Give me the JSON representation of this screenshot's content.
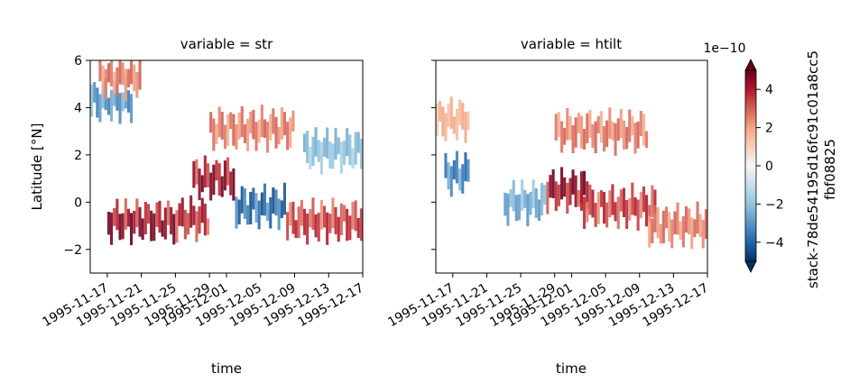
{
  "chart_data": {
    "type": "heatmap",
    "panels": [
      {
        "title": "variable = str",
        "xlabel": "time",
        "ylabel": "Latitude [°N]",
        "xtick_labels": [
          "1995-11-17",
          "1995-11-21",
          "1995-11-25",
          "1995-11-29",
          "1995-12-01",
          "1995-12-05",
          "1995-12-09",
          "1995-12-13",
          "1995-12-17"
        ],
        "ytick_labels": [
          "−2",
          "0",
          "2",
          "4",
          "6"
        ],
        "yticks": [
          -2,
          0,
          2,
          4,
          6
        ],
        "ylim": [
          -3,
          6
        ],
        "xlim": [
          "1995-11-15",
          "1995-12-17"
        ],
        "features": [
          {
            "lat": 4.3,
            "from": "1995-11-15",
            "to": "1995-11-20",
            "value": -3.5
          },
          {
            "lat": 5.3,
            "from": "1995-11-16",
            "to": "1995-11-21",
            "value": 3.0
          },
          {
            "lat": -0.8,
            "from": "1995-11-17",
            "to": "1995-11-25",
            "value": 5.0
          },
          {
            "lat": -0.7,
            "from": "1995-11-25",
            "to": "1995-11-29",
            "value": 4.5
          },
          {
            "lat": 1.0,
            "from": "1995-11-27",
            "to": "1995-12-02",
            "value": 5.0
          },
          {
            "lat": 3.1,
            "from": "1995-11-29",
            "to": "1995-12-09",
            "value": 3.0
          },
          {
            "lat": -0.2,
            "from": "1995-12-02",
            "to": "1995-12-08",
            "value": -4.5
          },
          {
            "lat": -0.8,
            "from": "1995-12-08",
            "to": "1995-12-17",
            "value": 4.0
          },
          {
            "lat": 2.2,
            "from": "1995-12-10",
            "to": "1995-12-17",
            "value": -2.5
          }
        ]
      },
      {
        "title": "variable = htilt",
        "xlabel": "time",
        "xtick_labels": [
          "1995-11-17",
          "1995-11-21",
          "1995-11-25",
          "1995-11-29",
          "1995-12-01",
          "1995-12-05",
          "1995-12-09",
          "1995-12-13",
          "1995-12-17"
        ],
        "yticks": [
          -2,
          0,
          2,
          4,
          6
        ],
        "ylim": [
          -3,
          6
        ],
        "xlim": [
          "1995-11-15",
          "1995-12-17"
        ],
        "features": [
          {
            "lat": 3.5,
            "from": "1995-11-15",
            "to": "1995-11-19",
            "value": 2.0
          },
          {
            "lat": 1.2,
            "from": "1995-11-16",
            "to": "1995-11-19",
            "value": -4.0
          },
          {
            "lat": 0.0,
            "from": "1995-11-23",
            "to": "1995-11-28",
            "value": -3.0
          },
          {
            "lat": 0.5,
            "from": "1995-11-28",
            "to": "1995-12-03",
            "value": 5.0
          },
          {
            "lat": 3.0,
            "from": "1995-11-29",
            "to": "1995-12-10",
            "value": 3.0
          },
          {
            "lat": -0.2,
            "from": "1995-12-02",
            "to": "1995-12-11",
            "value": 4.0
          },
          {
            "lat": -1.0,
            "from": "1995-12-10",
            "to": "1995-12-17",
            "value": 3.0
          }
        ]
      }
    ],
    "colorbar": {
      "label_lines": [
        "stack-78de54195d16fc91c01a8cc5",
        "fbf08825"
      ],
      "scale_label": "1e−10",
      "tick_values": [
        -4,
        -2,
        0,
        2,
        4
      ],
      "tick_labels": [
        "−4",
        "−2",
        "0",
        "2",
        "4"
      ],
      "range": [
        -5,
        5
      ],
      "colormap": "RdBu_r",
      "extend": "both"
    },
    "colors": {
      "negative_max": "#053061",
      "negative": "#2166ac",
      "negative_light": "#92c5de",
      "zero": "#f7f7f7",
      "positive_light": "#f4a582",
      "positive": "#b2182b",
      "positive_max": "#67001f"
    }
  }
}
